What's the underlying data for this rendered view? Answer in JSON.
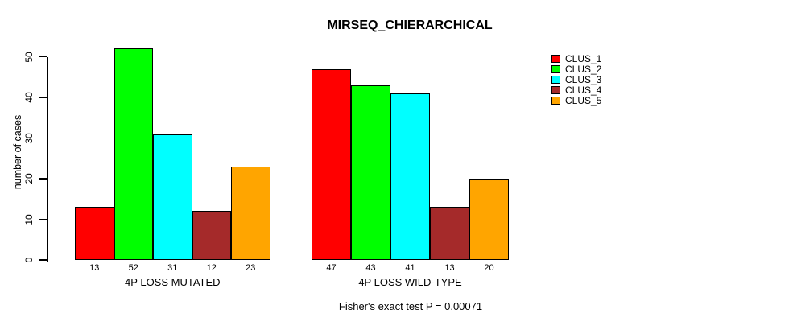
{
  "chart_data": {
    "type": "bar",
    "title": "MIRSEQ_CHIERARCHICAL",
    "ylabel": "number of cases",
    "xlabel": "",
    "ylim": [
      0,
      50
    ],
    "yticks": [
      0,
      10,
      20,
      30,
      40,
      50
    ],
    "grid": false,
    "legend_position": "right-outside",
    "categories": [
      "4P LOSS MUTATED",
      "4P LOSS WILD-TYPE"
    ],
    "series": [
      {
        "name": "CLUS_1",
        "color": "#FF0000",
        "values": [
          13,
          47
        ]
      },
      {
        "name": "CLUS_2",
        "color": "#00FF00",
        "values": [
          52,
          43
        ]
      },
      {
        "name": "CLUS_3",
        "color": "#00FFFF",
        "values": [
          31,
          41
        ]
      },
      {
        "name": "CLUS_4",
        "color": "#A52A2A",
        "values": [
          12,
          13
        ]
      },
      {
        "name": "CLUS_5",
        "color": "#FFA500",
        "values": [
          23,
          20
        ]
      }
    ],
    "bar_value_labels_shown": true,
    "annotation": "Fisher's exact test P = 0.00071",
    "background": "#FFFFFF",
    "axis_color": "#000000"
  }
}
